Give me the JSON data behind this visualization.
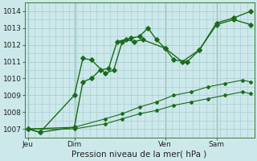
{
  "background_color": "#cce8ea",
  "grid_color": "#aacfd2",
  "line_color": "#1a6b1a",
  "title": "Pression niveau de la mer( hPa )",
  "x_tick_labels": [
    "Jeu",
    "Dim",
    "Ven",
    "Sam"
  ],
  "x_tick_positions": [
    0,
    2.7,
    8.0,
    11.0
  ],
  "ylim": [
    1006.5,
    1014.5
  ],
  "yticks": [
    1007,
    1008,
    1009,
    1010,
    1011,
    1012,
    1013,
    1014
  ],
  "line1_x": [
    0,
    0.7,
    2.7,
    3.2,
    3.7,
    4.5,
    5.0,
    5.5,
    6.0,
    6.5,
    7.0,
    7.5,
    8.0,
    8.5,
    9.3,
    10.0,
    11.0,
    12.0,
    13.0
  ],
  "line1_y": [
    1007.0,
    1006.8,
    1009.0,
    1011.2,
    1011.1,
    1010.3,
    1010.5,
    1012.2,
    1012.4,
    1012.5,
    1013.0,
    1012.3,
    1011.8,
    1011.1,
    1011.0,
    1011.7,
    1013.3,
    1013.6,
    1014.0
  ],
  "line2_x": [
    0,
    0.7,
    2.7,
    3.2,
    3.7,
    4.2,
    4.7,
    5.2,
    5.7,
    6.2,
    6.7,
    8.0,
    9.0,
    10.0,
    11.0,
    12.0,
    13.0
  ],
  "line2_y": [
    1007.0,
    1006.8,
    1007.1,
    1009.8,
    1010.0,
    1010.5,
    1010.6,
    1012.2,
    1012.3,
    1012.2,
    1012.3,
    1011.8,
    1011.0,
    1011.7,
    1013.2,
    1013.5,
    1013.2
  ],
  "line3_x": [
    0,
    2.7,
    4.5,
    5.5,
    6.5,
    7.5,
    8.5,
    9.5,
    10.5,
    11.5,
    12.5,
    13.0
  ],
  "line3_y": [
    1007.0,
    1007.1,
    1007.6,
    1007.9,
    1008.3,
    1008.6,
    1009.0,
    1009.2,
    1009.5,
    1009.7,
    1009.9,
    1009.8
  ],
  "line4_x": [
    0,
    2.7,
    4.5,
    5.5,
    6.5,
    7.5,
    8.5,
    9.5,
    10.5,
    11.5,
    12.5,
    13.0
  ],
  "line4_y": [
    1007.0,
    1007.0,
    1007.3,
    1007.6,
    1007.9,
    1008.1,
    1008.4,
    1008.6,
    1008.8,
    1009.0,
    1009.2,
    1009.1
  ],
  "vline_x": [
    0,
    2.7,
    8.0,
    11.0
  ],
  "xlim": [
    -0.2,
    13.2
  ],
  "xlabel_fontsize": 7.5,
  "tick_fontsize": 6.5
}
